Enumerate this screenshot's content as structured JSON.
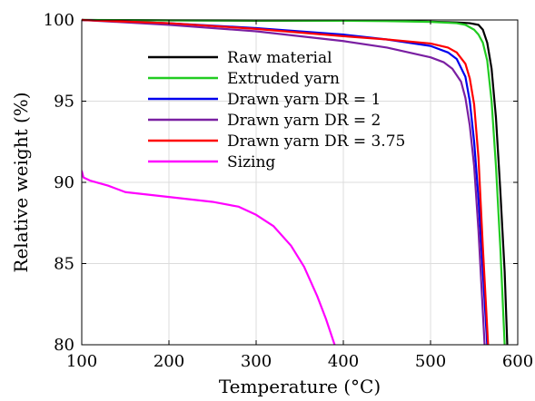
{
  "chart_data": {
    "type": "line",
    "xlabel": "Temperature (°C)",
    "ylabel": "Relative weight (%)",
    "xlim": [
      100,
      600
    ],
    "ylim": [
      80,
      100
    ],
    "xticks": [
      100,
      200,
      300,
      400,
      500,
      600
    ],
    "yticks": [
      80,
      85,
      90,
      95,
      100
    ],
    "grid": true,
    "legend_position": "top-center",
    "series": [
      {
        "name": "Raw material",
        "color": "#000000",
        "x": [
          100,
          200,
          300,
          400,
          450,
          500,
          530,
          545,
          555,
          560,
          565,
          570,
          575,
          580,
          585,
          588
        ],
        "y": [
          100,
          99.97,
          99.95,
          99.95,
          99.95,
          99.9,
          99.85,
          99.8,
          99.7,
          99.4,
          98.6,
          97,
          94,
          89.5,
          84.5,
          80
        ]
      },
      {
        "name": "Extruded yarn",
        "color": "#22cc22",
        "x": [
          100,
          200,
          300,
          400,
          450,
          500,
          530,
          540,
          550,
          555,
          560,
          565,
          570,
          575,
          580,
          585
        ],
        "y": [
          100,
          99.98,
          99.97,
          99.95,
          99.93,
          99.88,
          99.8,
          99.7,
          99.4,
          99.1,
          98.6,
          97.5,
          95,
          91,
          86,
          80
        ]
      },
      {
        "name": "Drawn yarn DR = 1",
        "color": "#0000ee",
        "x": [
          100,
          200,
          300,
          400,
          450,
          500,
          520,
          530,
          540,
          545,
          550,
          555,
          560,
          565
        ],
        "y": [
          100,
          99.8,
          99.5,
          99.1,
          98.8,
          98.4,
          98.0,
          97.6,
          96.5,
          95,
          92.5,
          89,
          84.5,
          80
        ]
      },
      {
        "name": "Drawn yarn DR = 2",
        "color": "#7a1fa2",
        "x": [
          100,
          200,
          300,
          400,
          450,
          500,
          515,
          525,
          535,
          540,
          545,
          550,
          555,
          562
        ],
        "y": [
          100,
          99.7,
          99.3,
          98.7,
          98.3,
          97.7,
          97.4,
          97.0,
          96.2,
          95.2,
          93.5,
          91,
          87,
          80
        ]
      },
      {
        "name": "Drawn yarn DR = 3.75",
        "color": "#ff0000",
        "x": [
          100,
          200,
          300,
          400,
          450,
          500,
          520,
          530,
          540,
          545,
          550,
          555,
          560,
          566
        ],
        "y": [
          100,
          99.8,
          99.45,
          99.0,
          98.8,
          98.55,
          98.3,
          98.0,
          97.3,
          96.4,
          94.8,
          91.5,
          86,
          80
        ]
      },
      {
        "name": "Sizing",
        "color": "#ff00ff",
        "x": [
          100,
          102,
          110,
          130,
          150,
          200,
          250,
          280,
          300,
          320,
          340,
          355,
          370,
          380,
          390
        ],
        "y": [
          90.7,
          90.3,
          90.1,
          89.8,
          89.4,
          89.1,
          88.8,
          88.5,
          88.0,
          87.3,
          86.1,
          84.8,
          83.0,
          81.6,
          80
        ]
      }
    ]
  }
}
